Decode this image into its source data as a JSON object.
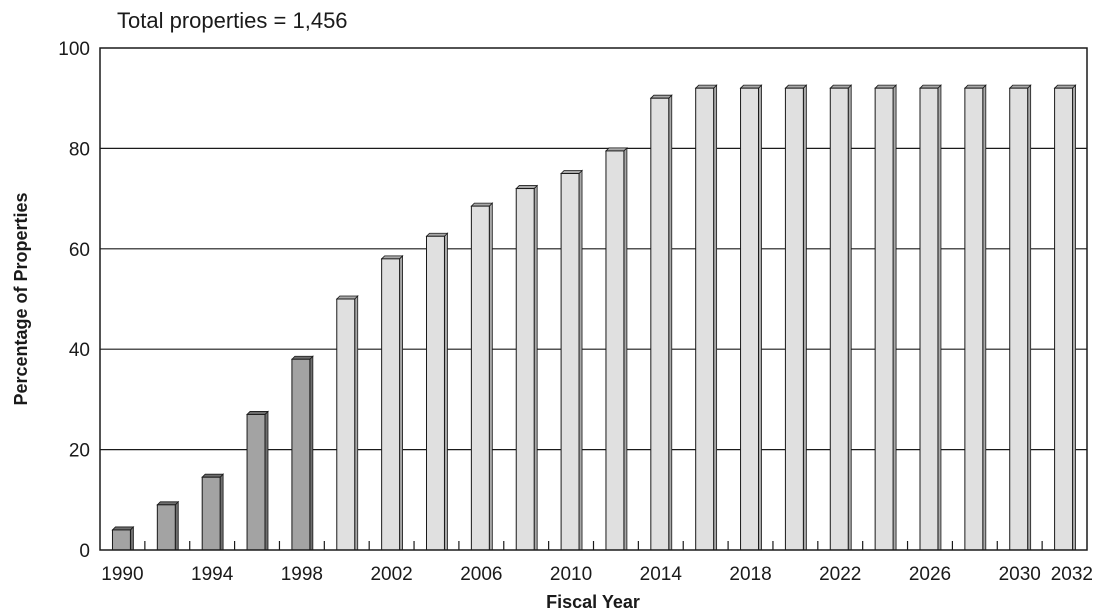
{
  "chart_data": {
    "type": "bar",
    "annotation": "Total properties = 1,456",
    "xlabel": "Fiscal Year",
    "ylabel": "Percentage of Properties",
    "ylim": [
      0,
      100
    ],
    "y_ticks": [
      0,
      20,
      40,
      60,
      80,
      100
    ],
    "x_tick_labels": [
      "1990",
      "1994",
      "1998",
      "2002",
      "2006",
      "2010",
      "2014",
      "2018",
      "2022",
      "2026",
      "2030",
      "2032"
    ],
    "grid": "horizontal",
    "categories": [
      "1990",
      "1992",
      "1994",
      "1996",
      "1998",
      "2000",
      "2002",
      "2004",
      "2006",
      "2008",
      "2010",
      "2012",
      "2014",
      "2016",
      "2018",
      "2020",
      "2022",
      "2024",
      "2026",
      "2028",
      "2030",
      "2032"
    ],
    "values": [
      4,
      9,
      14.5,
      27,
      38,
      50,
      58,
      62.5,
      68.5,
      72,
      75,
      79.5,
      90,
      92,
      92,
      92,
      92,
      92,
      92,
      92,
      92,
      92
    ],
    "colors": {
      "actual_front": "#a3a3a3",
      "actual_side": "#6e6e6e",
      "projected_front": "#e0e0e0",
      "projected_side": "#a8a8a8",
      "edge": "#1a1a1a"
    },
    "actual_through": "1998"
  }
}
